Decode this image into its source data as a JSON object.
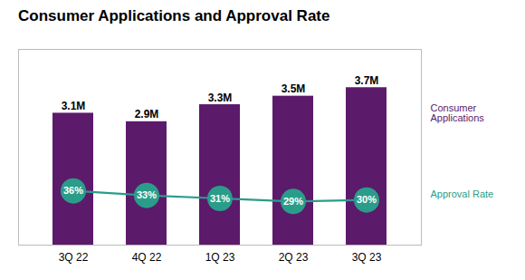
{
  "chart_data": {
    "type": "bar",
    "title": "Consumer Applications and Approval Rate",
    "categories": [
      "3Q 22",
      "4Q 22",
      "1Q 23",
      "2Q 23",
      "3Q 23"
    ],
    "series": [
      {
        "name": "Consumer\nApplications",
        "type": "bar",
        "color": "#5c1a6b",
        "values": [
          3.1,
          2.9,
          3.3,
          3.5,
          3.7
        ],
        "value_labels": [
          "3.1M",
          "2.9M",
          "3.3M",
          "3.5M",
          "3.7M"
        ]
      },
      {
        "name": "Approval Rate",
        "type": "line",
        "axis": "y2",
        "color": "#2a9d8a",
        "values": [
          36,
          33,
          31,
          29,
          30
        ],
        "value_labels": [
          "36%",
          "33%",
          "31%",
          "29%",
          "30%"
        ]
      }
    ],
    "ylim": [
      0,
      4.6
    ],
    "y2lim": [
      0,
      130
    ],
    "data_labels": true,
    "tick_labels": "x",
    "grid": false,
    "legend": "right"
  }
}
